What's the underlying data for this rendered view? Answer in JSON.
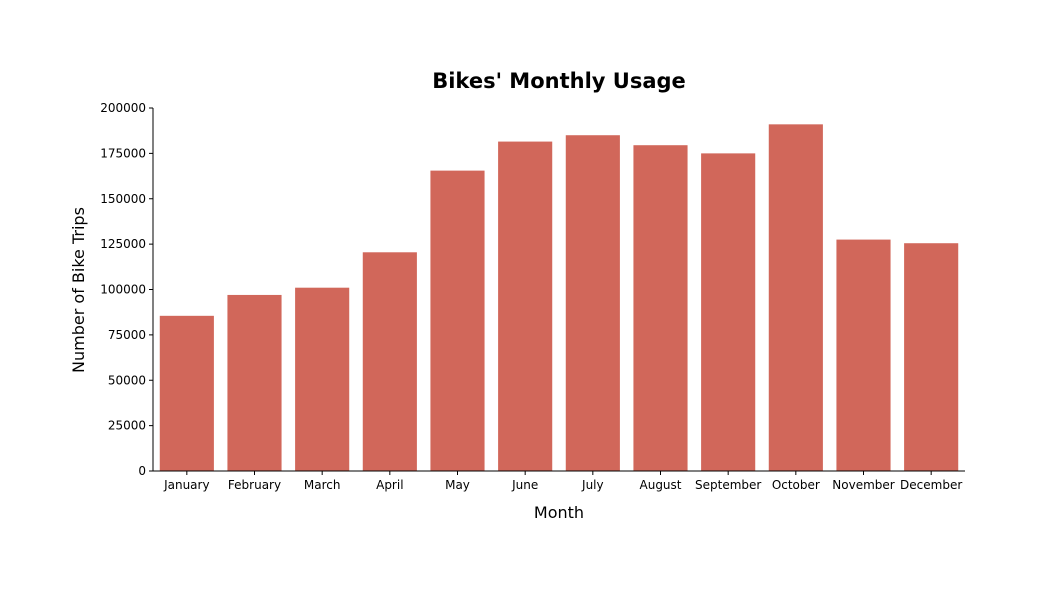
{
  "chart_data": {
    "type": "bar",
    "title": "Bikes' Monthly Usage",
    "xlabel": "Month",
    "ylabel": "Number of Bike Trips",
    "categories": [
      "January",
      "February",
      "March",
      "April",
      "May",
      "June",
      "July",
      "August",
      "September",
      "October",
      "November",
      "December"
    ],
    "values": [
      85500,
      97000,
      101000,
      120500,
      165500,
      181500,
      185000,
      179500,
      175000,
      191000,
      127500,
      125500
    ],
    "ylim": [
      0,
      200000
    ],
    "yticks": [
      0,
      25000,
      50000,
      75000,
      100000,
      125000,
      150000,
      175000,
      200000
    ],
    "grid": false,
    "legend": "none",
    "bar_color": "#d1675a"
  }
}
